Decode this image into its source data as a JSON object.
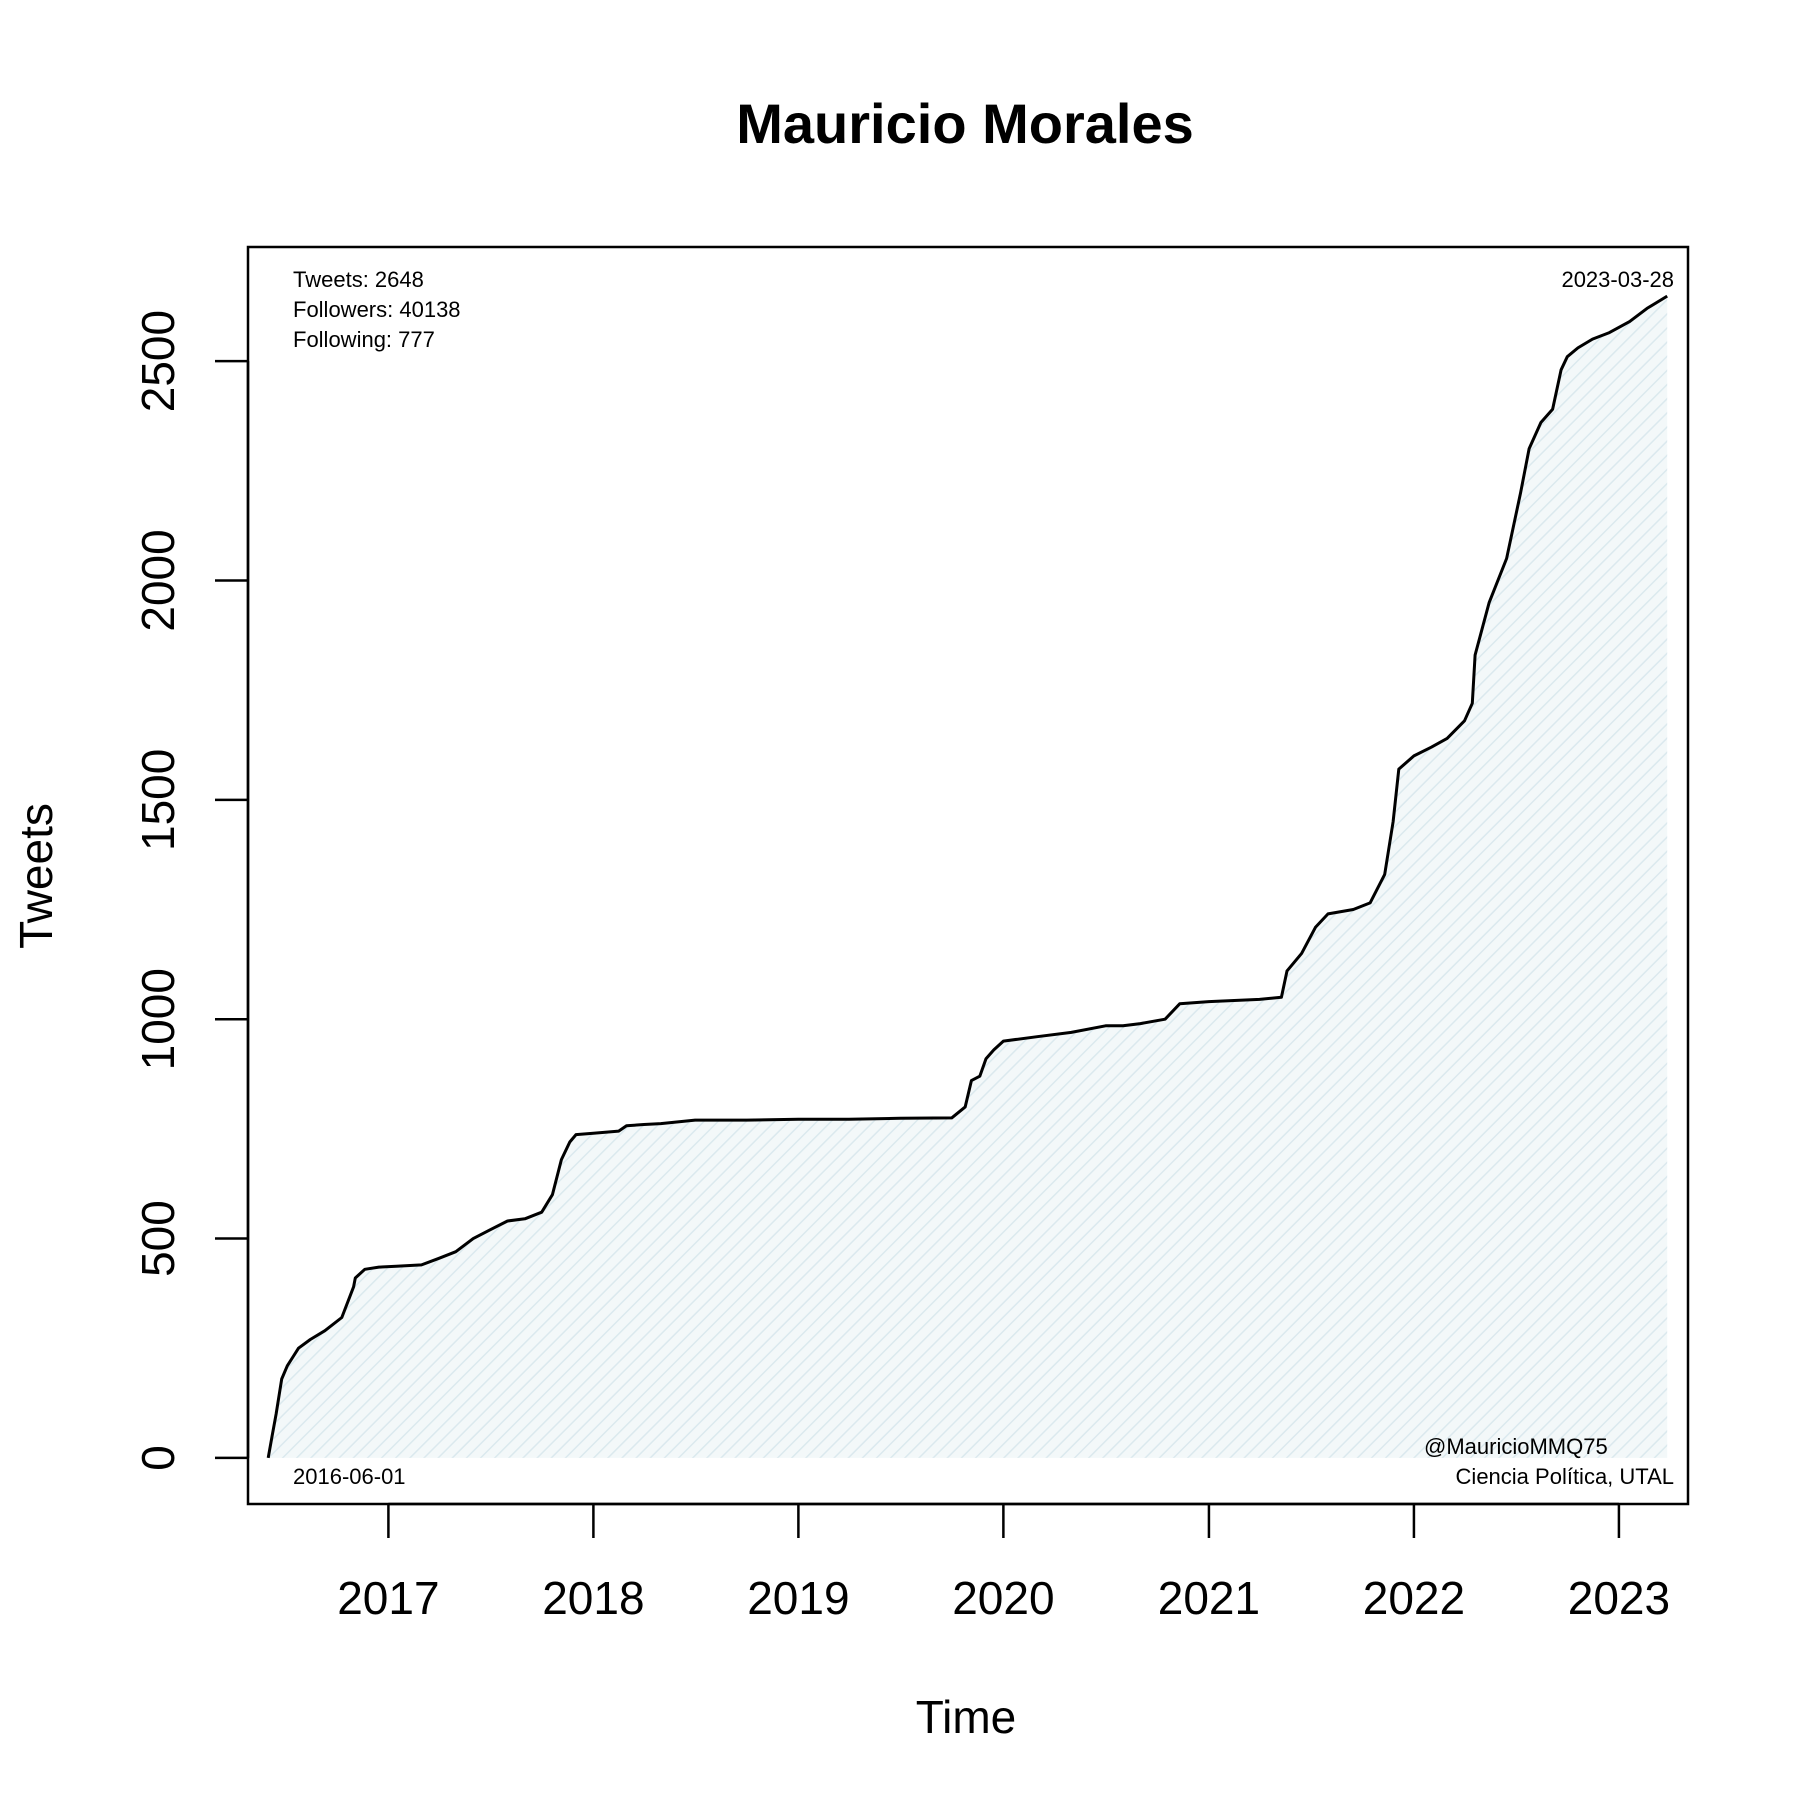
{
  "chart_data": {
    "type": "area",
    "title": "Mauricio Morales",
    "xlabel": "Time",
    "ylabel": "Tweets",
    "xlim": [
      "2016-04-26",
      "2023-05-04"
    ],
    "ylim": [
      -105,
      2760
    ],
    "x_ticks": [
      "2017-01-01",
      "2018-01-01",
      "2019-01-01",
      "2020-01-01",
      "2021-01-01",
      "2022-01-01",
      "2023-01-01"
    ],
    "x_tick_labels": [
      "2017",
      "2018",
      "2019",
      "2020",
      "2021",
      "2022",
      "2023"
    ],
    "y_ticks": [
      0,
      500,
      1000,
      1500,
      2000,
      2500
    ],
    "y_tick_labels": [
      "0",
      "500",
      "1000",
      "1500",
      "2000",
      "2500"
    ],
    "grid": false,
    "fill_color": "#eef5f7",
    "line_color": "#000000",
    "series": [
      {
        "x": [
          "2016-06-01",
          "2016-06-08",
          "2016-06-15",
          "2016-06-25",
          "2016-07-05",
          "2016-07-15",
          "2016-07-25",
          "2016-08-15",
          "2016-09-10",
          "2016-10-10",
          "2016-10-31",
          "2016-11-03",
          "2016-11-20",
          "2016-12-15",
          "2017-01-15",
          "2017-03-01",
          "2017-04-01",
          "2017-05-01",
          "2017-06-01",
          "2017-07-01",
          "2017-08-01",
          "2017-09-01",
          "2017-10-01",
          "2017-10-20",
          "2017-11-05",
          "2017-11-20",
          "2017-12-01",
          "2018-01-01",
          "2018-02-15",
          "2018-03-01",
          "2018-04-01",
          "2018-05-01",
          "2018-07-01",
          "2018-10-01",
          "2019-01-01",
          "2019-04-01",
          "2019-07-01",
          "2019-10-01",
          "2019-10-25",
          "2019-11-05",
          "2019-11-20",
          "2019-12-01",
          "2019-12-15",
          "2020-01-01",
          "2020-03-01",
          "2020-05-01",
          "2020-07-01",
          "2020-08-01",
          "2020-09-01",
          "2020-10-15",
          "2020-11-10",
          "2021-01-01",
          "2021-04-01",
          "2021-05-10",
          "2021-05-20",
          "2021-06-15",
          "2021-07-10",
          "2021-08-01",
          "2021-09-15",
          "2021-10-15",
          "2021-11-10",
          "2021-11-25",
          "2021-12-05",
          "2022-01-01",
          "2022-02-01",
          "2022-03-01",
          "2022-04-01",
          "2022-04-15",
          "2022-04-20",
          "2022-05-15",
          "2022-06-15",
          "2022-07-10",
          "2022-07-25",
          "2022-08-15",
          "2022-09-05",
          "2022-09-20",
          "2022-10-01",
          "2022-10-20",
          "2022-11-15",
          "2022-12-15",
          "2023-01-20",
          "2023-02-20",
          "2023-03-28"
        ],
        "y": [
          0,
          50,
          100,
          180,
          210,
          230,
          250,
          270,
          290,
          320,
          390,
          410,
          430,
          435,
          437,
          440,
          455,
          470,
          500,
          520,
          540,
          545,
          560,
          600,
          680,
          720,
          737,
          740,
          745,
          757,
          760,
          762,
          770,
          770,
          772,
          772,
          774,
          775,
          800,
          860,
          870,
          910,
          930,
          950,
          960,
          970,
          985,
          985,
          990,
          1000,
          1035,
          1040,
          1045,
          1050,
          1110,
          1150,
          1210,
          1240,
          1250,
          1265,
          1330,
          1450,
          1570,
          1600,
          1620,
          1640,
          1680,
          1720,
          1830,
          1950,
          2050,
          2200,
          2300,
          2360,
          2390,
          2480,
          2510,
          2530,
          2550,
          2565,
          2590,
          2620,
          2648
        ]
      }
    ],
    "annotations": {
      "tweets": "Tweets: 2648",
      "followers": "Followers: 40138",
      "following": "Following: 777",
      "end_date": "2023-03-28",
      "start_date": "2016-06-01",
      "handle": "@MauricioMMQ75",
      "affiliation": "Ciencia Política, UTAL"
    }
  }
}
